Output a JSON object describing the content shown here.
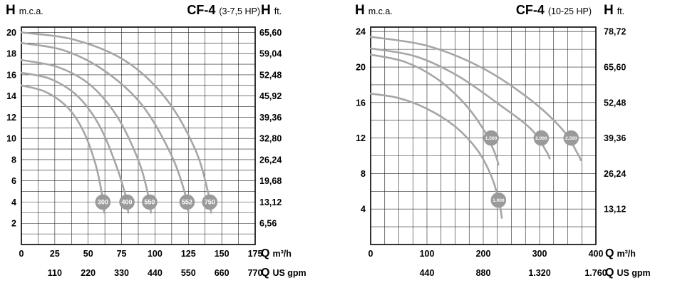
{
  "page": {
    "background": "#ffffff"
  },
  "colors": {
    "curve": "#a6a6a6",
    "badge": "#9a9a9a",
    "badge_text": "#ffffff",
    "grid": "#222222",
    "frame": "#000000",
    "text": "#000000"
  },
  "chart_data": [
    {
      "type": "line",
      "h_symbol": "H",
      "unit_left": "m.c.a.",
      "model": "CF-4",
      "power": "(3-7,5 HP)",
      "unit_right": "ft.",
      "q_symbol": "Q",
      "x_unit_primary": "m³/h",
      "x_unit_secondary": "US gpm",
      "xlim": [
        0,
        175
      ],
      "ylim": [
        0,
        20.5
      ],
      "x_grid_step": 12.5,
      "y_grid_step": 1,
      "x_ticks": [
        0,
        25,
        50,
        75,
        100,
        125,
        150,
        175
      ],
      "x_tick_labels": [
        "0",
        "25",
        "50",
        "75",
        "100",
        "125",
        "150",
        "175"
      ],
      "gpm_ticks": [
        25,
        50,
        75,
        100,
        125,
        150,
        175
      ],
      "gpm_labels": [
        "110",
        "220",
        "330",
        "440",
        "550",
        "660",
        "770"
      ],
      "y_ticks": [
        2,
        4,
        6,
        8,
        10,
        12,
        14,
        16,
        18,
        20
      ],
      "y_tick_labels": [
        "2",
        "4",
        "6",
        "8",
        "10",
        "12",
        "14",
        "16",
        "18",
        "20"
      ],
      "ft_labels": [
        "6,56",
        "13,12",
        "19,68",
        "26,24",
        "32,80",
        "39,36",
        "45,92",
        "52,48",
        "59,04",
        "65,60"
      ],
      "series": [
        {
          "name": "300",
          "points": [
            [
              0,
              15
            ],
            [
              18,
              14.4
            ],
            [
              34,
              13
            ],
            [
              46,
              10.8
            ],
            [
              55,
              7.8
            ],
            [
              60,
              5
            ],
            [
              62,
              3
            ]
          ],
          "label_pos": [
            61,
            4
          ]
        },
        {
          "name": "400",
          "points": [
            [
              0,
              16.2
            ],
            [
              22,
              15.6
            ],
            [
              42,
              14
            ],
            [
              58,
              11.3
            ],
            [
              70,
              7.8
            ],
            [
              78,
              4.6
            ],
            [
              80,
              3
            ]
          ],
          "label_pos": [
            79,
            4
          ]
        },
        {
          "name": "550",
          "points": [
            [
              0,
              17.4
            ],
            [
              28,
              16.7
            ],
            [
              52,
              15
            ],
            [
              72,
              12
            ],
            [
              88,
              7.8
            ],
            [
              95,
              4.6
            ],
            [
              97,
              3
            ]
          ],
          "label_pos": [
            96,
            4
          ]
        },
        {
          "name": "552",
          "points": [
            [
              0,
              19
            ],
            [
              32,
              18.3
            ],
            [
              62,
              16.4
            ],
            [
              90,
              13.2
            ],
            [
              112,
              8.5
            ],
            [
              123,
              4.6
            ],
            [
              125,
              3
            ]
          ],
          "label_pos": [
            124,
            4
          ]
        },
        {
          "name": "750",
          "points": [
            [
              0,
              20
            ],
            [
              40,
              19.3
            ],
            [
              78,
              17.3
            ],
            [
              108,
              13.8
            ],
            [
              130,
              9
            ],
            [
              140,
              4.8
            ],
            [
              142,
              3
            ]
          ],
          "label_pos": [
            141,
            4
          ]
        }
      ]
    },
    {
      "type": "line",
      "h_symbol": "H",
      "unit_left": "m.c.a.",
      "model": "CF-4",
      "power": "(10-25 HP)",
      "unit_right": "ft.",
      "q_symbol": "Q",
      "x_unit_primary": "m³/h",
      "x_unit_secondary": "US gpm",
      "xlim": [
        0,
        400
      ],
      "ylim": [
        0,
        24.5
      ],
      "x_grid_step": 25,
      "y_grid_step": 2,
      "x_ticks": [
        0,
        100,
        200,
        300,
        400
      ],
      "x_tick_labels": [
        "0",
        "100",
        "200",
        "300",
        "400"
      ],
      "gpm_ticks": [
        100,
        200,
        300,
        400
      ],
      "gpm_labels": [
        "440",
        "880",
        "1.320",
        "1.760"
      ],
      "y_ticks": [
        4,
        8,
        12,
        16,
        20,
        24
      ],
      "y_tick_labels": [
        "4",
        "8",
        "12",
        "16",
        "20",
        "24"
      ],
      "ft_labels": [
        "13,12",
        "26,24",
        "39,36",
        "52,48",
        "65,60",
        "78,72"
      ],
      "series": [
        {
          "name": "1.000",
          "points": [
            [
              0,
              17
            ],
            [
              50,
              16.5
            ],
            [
              100,
              15.3
            ],
            [
              150,
              13.3
            ],
            [
              190,
              10.6
            ],
            [
              215,
              7.6
            ],
            [
              228,
              4.8
            ],
            [
              233,
              3
            ]
          ],
          "label_pos": [
            227,
            5
          ]
        },
        {
          "name": "1.500",
          "points": [
            [
              0,
              21.4
            ],
            [
              60,
              20.6
            ],
            [
              115,
              18.8
            ],
            [
              165,
              16
            ],
            [
              200,
              13
            ],
            [
              220,
              10.4
            ],
            [
              227,
              9
            ]
          ],
          "label_pos": [
            214,
            12
          ]
        },
        {
          "name": "2.000",
          "points": [
            [
              0,
              22.1
            ],
            [
              80,
              21.2
            ],
            [
              155,
              19
            ],
            [
              230,
              15.7
            ],
            [
              285,
              13
            ],
            [
              312,
              10.5
            ],
            [
              318,
              9.7
            ]
          ],
          "label_pos": [
            303,
            12
          ]
        },
        {
          "name": "2.500",
          "points": [
            [
              0,
              23.4
            ],
            [
              100,
              22.4
            ],
            [
              195,
              20
            ],
            [
              280,
              16.5
            ],
            [
              340,
              13
            ],
            [
              368,
              10.2
            ],
            [
              373,
              9.5
            ]
          ],
          "label_pos": [
            356,
            12
          ]
        }
      ]
    }
  ]
}
